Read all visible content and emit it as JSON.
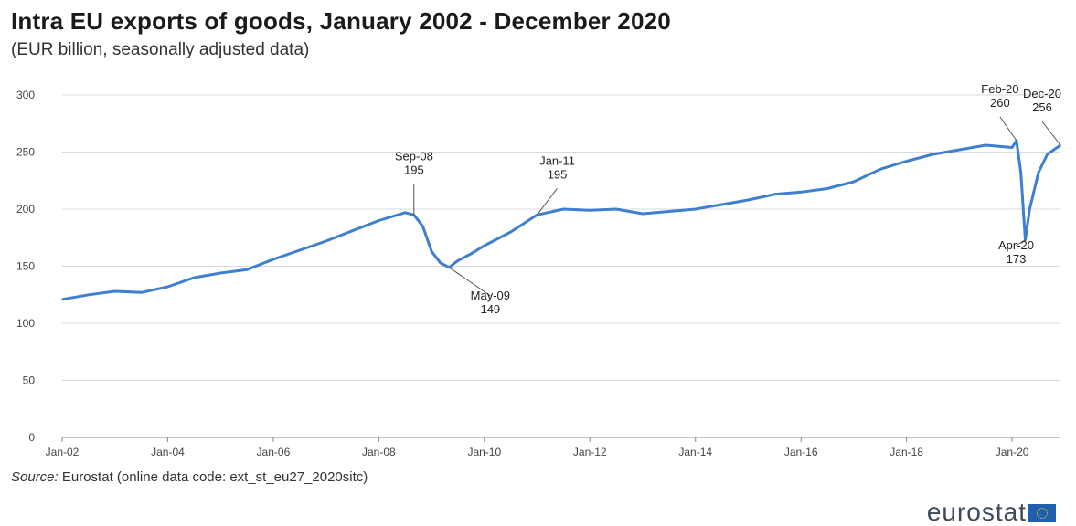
{
  "header": {
    "title": "Intra EU exports of goods, January 2002 - December 2020",
    "subtitle": "(EUR billion, seasonally adjusted data)"
  },
  "footer": {
    "source_label": "Source:",
    "source_text": "Eurostat (online data code: ext_st_eu27_2020sitc)",
    "logo_text": "eurostat"
  },
  "colors": {
    "line": "#3f7fcf",
    "grid": "#d9d9d9",
    "axis": "#888888"
  },
  "chart_data": {
    "type": "line",
    "title": "Intra EU exports of goods, January 2002 - December 2020",
    "subtitle": "(EUR billion, seasonally adjusted data)",
    "xlabel": "",
    "ylabel": "",
    "ylim": [
      0,
      300
    ],
    "yticks": [
      0,
      50,
      100,
      150,
      200,
      250,
      300
    ],
    "xticks": [
      "Jan-02",
      "Jan-04",
      "Jan-06",
      "Jan-08",
      "Jan-10",
      "Jan-12",
      "Jan-14",
      "Jan-16",
      "Jan-18",
      "Jan-20"
    ],
    "grid": true,
    "legend": "none",
    "series": [
      {
        "x": [
          "Jan-02",
          "Jul-02",
          "Jan-03",
          "Jul-03",
          "Jan-04",
          "Jul-04",
          "Jan-05",
          "Jul-05",
          "Jan-06",
          "Jul-06",
          "Jan-07",
          "Jul-07",
          "Jan-08",
          "Jul-08",
          "Sep-08",
          "Nov-08",
          "Jan-09",
          "Mar-09",
          "May-09",
          "Jul-09",
          "Oct-09",
          "Jan-10",
          "Jul-10",
          "Jan-11",
          "Jul-11",
          "Jan-12",
          "Jul-12",
          "Jan-13",
          "Jul-13",
          "Jan-14",
          "Jul-14",
          "Jan-15",
          "Jul-15",
          "Jan-16",
          "Jul-16",
          "Jan-17",
          "Jul-17",
          "Jan-18",
          "Jul-18",
          "Jan-19",
          "Jul-19",
          "Jan-20",
          "Feb-20",
          "Mar-20",
          "Apr-20",
          "May-20",
          "Jul-20",
          "Sep-20",
          "Dec-20"
        ],
        "values": [
          121,
          125,
          128,
          127,
          132,
          140,
          144,
          147,
          156,
          164,
          172,
          181,
          190,
          197,
          195,
          185,
          163,
          153,
          149,
          155,
          161,
          168,
          180,
          195,
          200,
          199,
          200,
          196,
          198,
          200,
          204,
          208,
          213,
          215,
          218,
          224,
          235,
          242,
          248,
          252,
          256,
          254,
          260,
          232,
          173,
          200,
          232,
          248,
          256
        ]
      }
    ],
    "annotations": [
      {
        "label": "Sep-08",
        "value": "195"
      },
      {
        "label": "May-09",
        "value": "149"
      },
      {
        "label": "Jan-11",
        "value": "195"
      },
      {
        "label": "Feb-20",
        "value": "260"
      },
      {
        "label": "Apr-20",
        "value": "173"
      },
      {
        "label": "Dec-20",
        "value": "256"
      }
    ]
  }
}
